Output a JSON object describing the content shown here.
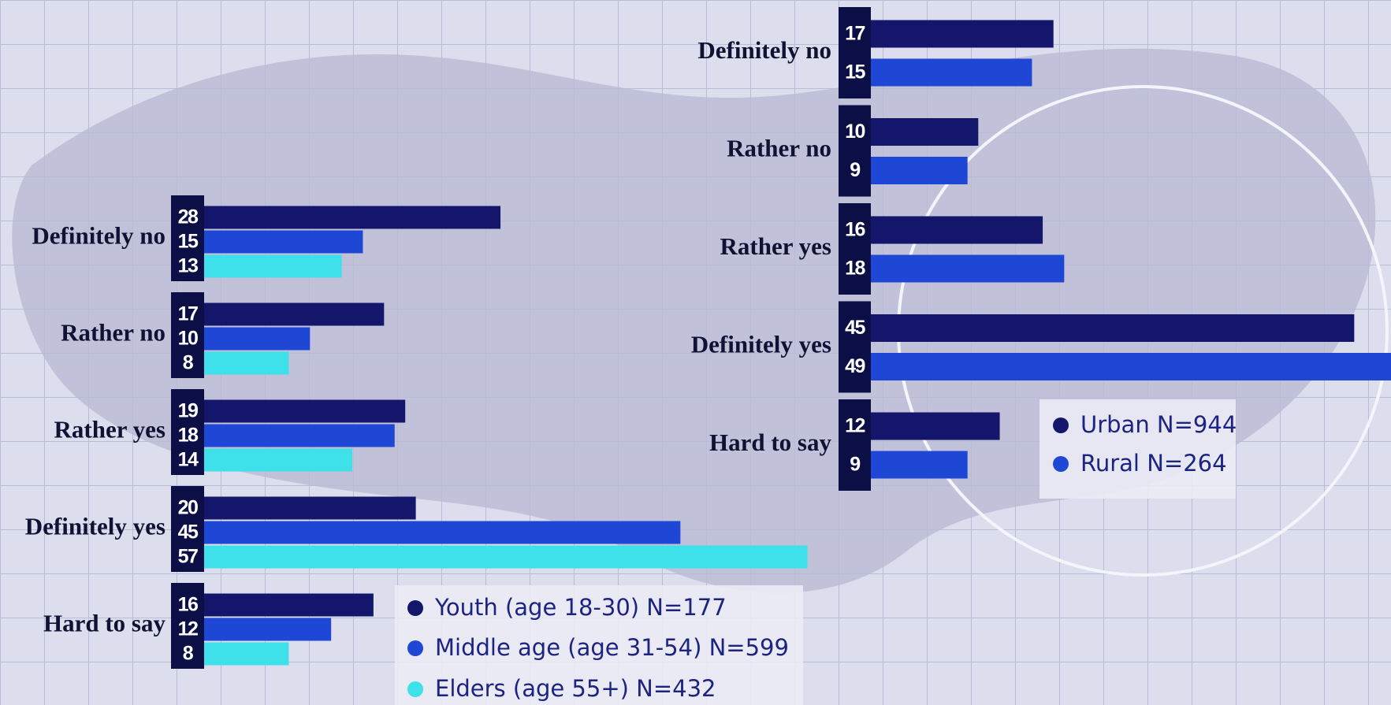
{
  "chart_data": [
    {
      "type": "bar",
      "categories": [
        "Definitely no",
        "Rather no",
        "Rather yes",
        "Definitely yes",
        "Hard to say"
      ],
      "series": [
        {
          "name": "Youth (age 18-30) N=177",
          "color": "#13166b",
          "values": [
            28,
            17,
            19,
            20,
            16
          ]
        },
        {
          "name": "Middle age (age 31-54) N=599",
          "color": "#1f47d6",
          "values": [
            15,
            10,
            18,
            45,
            12
          ]
        },
        {
          "name": "Elders (age 55+) N=432",
          "color": "#3ee0ea",
          "values": [
            13,
            8,
            14,
            57,
            8
          ]
        }
      ]
    },
    {
      "type": "bar",
      "categories": [
        "Definitely no",
        "Rather no",
        "Rather yes",
        "Definitely yes",
        "Hard to say"
      ],
      "series": [
        {
          "name": "Urban N=944",
          "color": "#13166b",
          "values": [
            17,
            10,
            16,
            45,
            12
          ]
        },
        {
          "name": "Rural N=264",
          "color": "#1f47d6",
          "values": [
            15,
            9,
            18,
            49,
            9
          ]
        }
      ]
    }
  ]
}
